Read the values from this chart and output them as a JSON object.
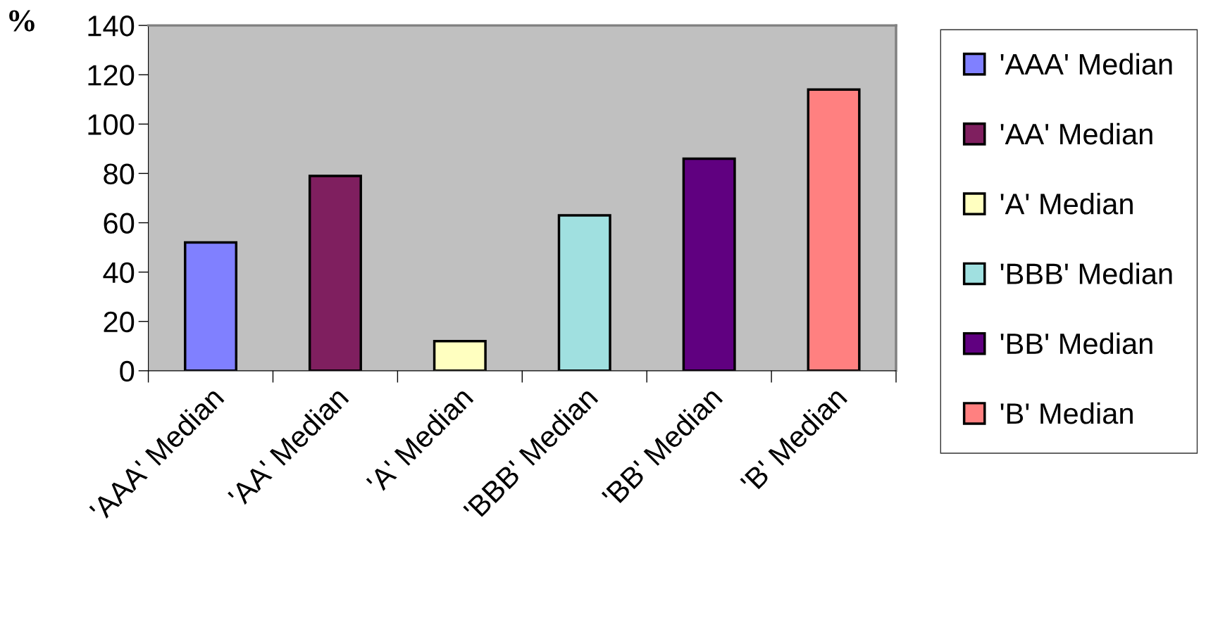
{
  "chart_data": {
    "type": "bar",
    "ylabel": "%",
    "categories": [
      "'AAA' Median",
      "'AA' Median",
      "'A' Median",
      "'BBB' Median",
      "'BB' Median",
      "'B' Median"
    ],
    "series": [
      {
        "name": "'AAA' Median",
        "color": "#8080ff",
        "values": [
          52,
          null,
          null,
          null,
          null,
          null
        ]
      },
      {
        "name": "'AA' Median",
        "color": "#7f1f5f",
        "values": [
          null,
          79,
          null,
          null,
          null,
          null
        ]
      },
      {
        "name": "'A' Median",
        "color": "#ffffc0",
        "values": [
          null,
          null,
          12,
          null,
          null,
          null
        ]
      },
      {
        "name": "'BBB' Median",
        "color": "#a0e0e0",
        "values": [
          null,
          null,
          null,
          63,
          null,
          null
        ]
      },
      {
        "name": "'BB' Median",
        "color": "#600080",
        "values": [
          null,
          null,
          null,
          null,
          86,
          null
        ]
      },
      {
        "name": "'B' Median",
        "color": "#ff8080",
        "values": [
          null,
          null,
          null,
          null,
          null,
          114
        ]
      }
    ],
    "ylim": [
      0,
      140
    ],
    "yticks": [
      0,
      20,
      40,
      60,
      80,
      100,
      120,
      140
    ],
    "grid": false,
    "legend": "right"
  }
}
